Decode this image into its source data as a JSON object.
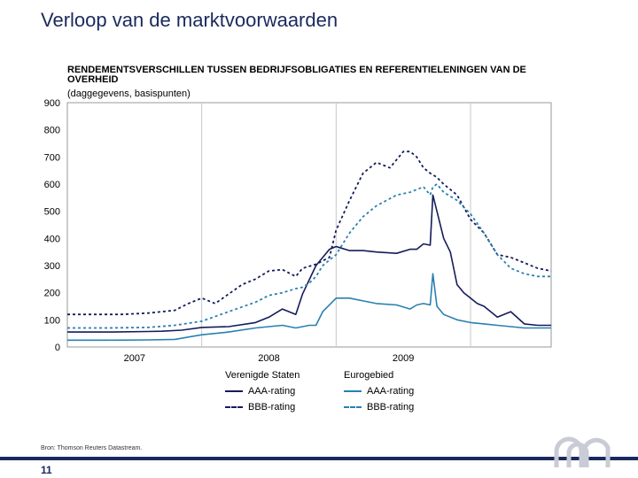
{
  "slide": {
    "title": "Verloop van de marktvoorwaarden",
    "source": "Bron: Thomson Reuters Datastream.",
    "page_number": "11"
  },
  "legend": {
    "us_title": "Verenigde Staten",
    "ea_title": "Eurogebied",
    "aaa_label": "AAA-rating",
    "bbb_label": "BBB-rating"
  },
  "colors": {
    "us": "#141c5a",
    "ea": "#2a80b0",
    "title": "#1a2a5e",
    "grid": "#c8c8c8",
    "plot_border": "#999999"
  },
  "chart_data": {
    "type": "line",
    "title": "RENDEMENTSVERSCHILLEN TUSSEN BEDRIJFSOBLIGATIES EN REFERENTIELENINGEN VAN DE OVERHEID",
    "subtitle": "(daggegevens, basispunten)",
    "xlabel": "",
    "ylabel": "",
    "xlim": [
      2006.0,
      2009.6
    ],
    "ylim": [
      0,
      900
    ],
    "yticks": [
      0,
      100,
      200,
      300,
      400,
      500,
      600,
      700,
      800,
      900
    ],
    "xticks": [
      {
        "label": "2007",
        "x": 2006.5
      },
      {
        "label": "2008",
        "x": 2007.5
      },
      {
        "label": "2009",
        "x": 2008.5
      }
    ],
    "x_gridlines": [
      2007.0,
      2008.0,
      2009.0
    ],
    "grid": true,
    "series": [
      {
        "name": "AAA-rating",
        "region": "Verenigde Staten",
        "style": "solid",
        "color": "#141c5a",
        "x": [
          2006.0,
          2006.3,
          2006.6,
          2006.7,
          2006.85,
          2007.0,
          2007.2,
          2007.4,
          2007.5,
          2007.6,
          2007.7,
          2007.75,
          2007.85,
          2007.95,
          2008.0,
          2008.1,
          2008.2,
          2008.3,
          2008.45,
          2008.55,
          2008.6,
          2008.65,
          2008.7,
          2008.72,
          2008.75,
          2008.8,
          2008.85,
          2008.9,
          2008.95,
          2009.0,
          2009.05,
          2009.1,
          2009.2,
          2009.3,
          2009.4,
          2009.5,
          2009.6
        ],
        "y": [
          55,
          55,
          57,
          58,
          62,
          72,
          75,
          90,
          110,
          140,
          120,
          195,
          300,
          360,
          370,
          355,
          355,
          350,
          345,
          360,
          360,
          380,
          375,
          560,
          500,
          400,
          350,
          230,
          200,
          180,
          160,
          150,
          110,
          130,
          85,
          80,
          80
        ]
      },
      {
        "name": "BBB-rating",
        "region": "Verenigde Staten",
        "style": "dashed",
        "color": "#141c5a",
        "x": [
          2006.0,
          2006.2,
          2006.4,
          2006.6,
          2006.8,
          2006.9,
          2007.0,
          2007.1,
          2007.2,
          2007.3,
          2007.4,
          2007.5,
          2007.6,
          2007.7,
          2007.75,
          2007.85,
          2007.95,
          2008.0,
          2008.1,
          2008.2,
          2008.3,
          2008.35,
          2008.4,
          2008.5,
          2008.55,
          2008.6,
          2008.65,
          2008.7,
          2008.75,
          2008.8,
          2008.85,
          2008.9,
          2009.0,
          2009.1,
          2009.2,
          2009.3,
          2009.4,
          2009.5,
          2009.6
        ],
        "y": [
          120,
          120,
          120,
          125,
          135,
          160,
          180,
          160,
          195,
          230,
          250,
          280,
          285,
          260,
          290,
          305,
          330,
          430,
          540,
          640,
          680,
          670,
          660,
          720,
          720,
          700,
          660,
          640,
          625,
          600,
          580,
          560,
          470,
          420,
          340,
          330,
          310,
          290,
          280
        ]
      },
      {
        "name": "AAA-rating",
        "region": "Eurogebied",
        "style": "solid",
        "color": "#2a80b0",
        "x": [
          2006.0,
          2006.3,
          2006.6,
          2006.8,
          2007.0,
          2007.2,
          2007.4,
          2007.5,
          2007.6,
          2007.7,
          2007.75,
          2007.8,
          2007.85,
          2007.9,
          2008.0,
          2008.1,
          2008.2,
          2008.3,
          2008.45,
          2008.55,
          2008.6,
          2008.65,
          2008.7,
          2008.72,
          2008.75,
          2008.8,
          2008.9,
          2009.0,
          2009.1,
          2009.2,
          2009.3,
          2009.4,
          2009.5,
          2009.6
        ],
        "y": [
          25,
          25,
          26,
          28,
          45,
          55,
          70,
          75,
          80,
          70,
          75,
          80,
          80,
          130,
          180,
          180,
          170,
          160,
          155,
          140,
          155,
          160,
          155,
          270,
          150,
          120,
          100,
          90,
          85,
          80,
          75,
          70,
          70,
          70
        ]
      },
      {
        "name": "BBB-rating",
        "region": "Eurogebied",
        "style": "dashed",
        "color": "#2a80b0",
        "x": [
          2006.0,
          2006.3,
          2006.6,
          2006.8,
          2007.0,
          2007.2,
          2007.4,
          2007.5,
          2007.6,
          2007.7,
          2007.75,
          2007.8,
          2007.85,
          2007.9,
          2008.0,
          2008.1,
          2008.2,
          2008.3,
          2008.45,
          2008.55,
          2008.6,
          2008.65,
          2008.7,
          2008.72,
          2008.75,
          2008.8,
          2008.9,
          2009.0,
          2009.1,
          2009.2,
          2009.3,
          2009.4,
          2009.5,
          2009.6
        ],
        "y": [
          70,
          70,
          72,
          80,
          95,
          130,
          165,
          190,
          200,
          215,
          220,
          235,
          260,
          300,
          340,
          420,
          480,
          520,
          560,
          570,
          580,
          590,
          560,
          590,
          600,
          570,
          540,
          490,
          420,
          340,
          290,
          270,
          260,
          260
        ]
      }
    ]
  }
}
